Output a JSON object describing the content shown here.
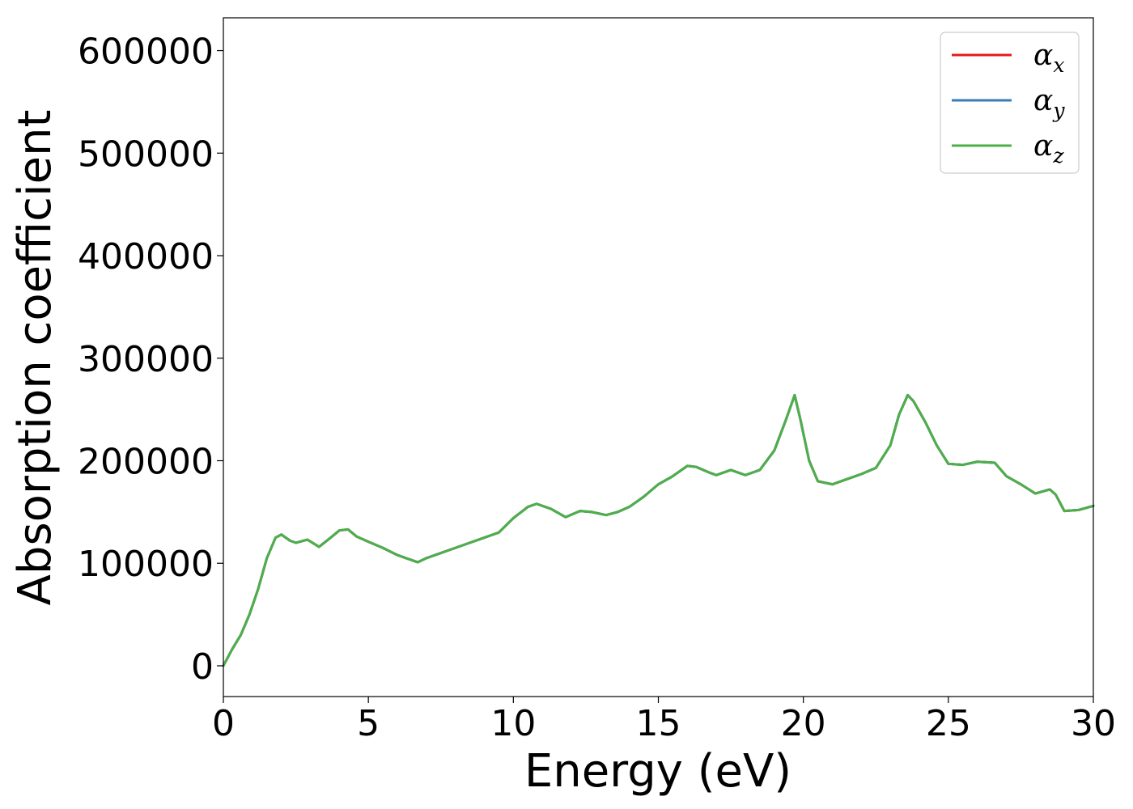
{
  "chart_data": {
    "type": "line",
    "xlabel": "Energy (eV)",
    "ylabel": "Absorption coefficient",
    "xlim": [
      0,
      30
    ],
    "ylim": [
      -30000,
      632000
    ],
    "xticks": [
      0,
      5,
      10,
      15,
      20,
      25,
      30
    ],
    "xtick_labels": [
      "0",
      "5",
      "10",
      "15",
      "20",
      "25",
      "30"
    ],
    "yticks": [
      0,
      100000,
      200000,
      300000,
      400000,
      500000,
      600000
    ],
    "ytick_labels": [
      "0",
      "100000",
      "200000",
      "300000",
      "400000",
      "500000",
      "600000"
    ],
    "grid": false,
    "legend_position": "top-right",
    "x": [
      0,
      0.3,
      0.6,
      0.9,
      1.2,
      1.5,
      1.8,
      2.0,
      2.3,
      2.5,
      2.9,
      3.3,
      3.7,
      4.0,
      4.3,
      4.6,
      5.0,
      5.5,
      6.0,
      6.3,
      6.7,
      7.0,
      7.5,
      8.0,
      8.5,
      9.0,
      9.5,
      10.0,
      10.5,
      10.8,
      11.3,
      11.8,
      12.3,
      12.7,
      13.2,
      13.6,
      14.0,
      14.5,
      15.0,
      15.5,
      16.0,
      16.3,
      16.8,
      17.0,
      17.5,
      18.0,
      18.5,
      19.0,
      19.4,
      19.7,
      19.9,
      20.2,
      20.5,
      21.0,
      21.5,
      22.0,
      22.5,
      23.0,
      23.3,
      23.6,
      23.8,
      24.2,
      24.6,
      25.0,
      25.5,
      26.0,
      26.6,
      27.0,
      27.5,
      28.0,
      28.5,
      28.7,
      29.0,
      29.5,
      30.0
    ],
    "series": [
      {
        "name": "αx",
        "color": "#e41a1c",
        "values": [
          0,
          16000,
          30000,
          50000,
          75000,
          105000,
          125000,
          128000,
          122000,
          120000,
          123000,
          116000,
          125000,
          132000,
          133000,
          126000,
          121000,
          115000,
          108000,
          105000,
          101000,
          105000,
          110000,
          115000,
          120000,
          125000,
          130000,
          144000,
          155000,
          158000,
          153000,
          145000,
          151000,
          150000,
          147000,
          150000,
          155000,
          165000,
          177000,
          185000,
          195000,
          194000,
          188000,
          186000,
          191000,
          186000,
          191000,
          210000,
          240000,
          264000,
          240000,
          200000,
          180000,
          177000,
          182000,
          187000,
          193000,
          215000,
          245000,
          264000,
          258000,
          238000,
          215000,
          197000,
          196000,
          199000,
          198000,
          185000,
          177000,
          168000,
          172000,
          167000,
          151000,
          152000,
          156000
        ]
      },
      {
        "name": "αy",
        "color": "#377eb8",
        "values": [
          0,
          16000,
          30000,
          50000,
          75000,
          105000,
          125000,
          128000,
          122000,
          120000,
          123000,
          116000,
          125000,
          132000,
          133000,
          126000,
          121000,
          115000,
          108000,
          105000,
          101000,
          105000,
          110000,
          115000,
          120000,
          125000,
          130000,
          144000,
          155000,
          158000,
          153000,
          145000,
          151000,
          150000,
          147000,
          150000,
          155000,
          165000,
          177000,
          185000,
          195000,
          194000,
          188000,
          186000,
          191000,
          186000,
          191000,
          210000,
          240000,
          264000,
          240000,
          200000,
          180000,
          177000,
          182000,
          187000,
          193000,
          215000,
          245000,
          264000,
          258000,
          238000,
          215000,
          197000,
          196000,
          199000,
          198000,
          185000,
          177000,
          168000,
          172000,
          167000,
          151000,
          152000,
          156000
        ]
      },
      {
        "name": "αz",
        "color": "#4daf4a",
        "values": [
          0,
          16000,
          30000,
          50000,
          75000,
          105000,
          125000,
          128000,
          122000,
          120000,
          123000,
          116000,
          125000,
          132000,
          133000,
          126000,
          121000,
          115000,
          108000,
          105000,
          101000,
          105000,
          110000,
          115000,
          120000,
          125000,
          130000,
          144000,
          155000,
          158000,
          153000,
          145000,
          151000,
          150000,
          147000,
          150000,
          155000,
          165000,
          177000,
          185000,
          195000,
          194000,
          188000,
          186000,
          191000,
          186000,
          191000,
          210000,
          240000,
          264000,
          240000,
          200000,
          180000,
          177000,
          182000,
          187000,
          193000,
          215000,
          245000,
          264000,
          258000,
          238000,
          215000,
          197000,
          196000,
          199000,
          198000,
          185000,
          177000,
          168000,
          172000,
          167000,
          151000,
          152000,
          156000
        ]
      }
    ],
    "legend": [
      {
        "symbol": "α",
        "sub": "x",
        "color": "#e41a1c"
      },
      {
        "symbol": "α",
        "sub": "y",
        "color": "#377eb8"
      },
      {
        "symbol": "α",
        "sub": "z",
        "color": "#4daf4a"
      }
    ]
  }
}
